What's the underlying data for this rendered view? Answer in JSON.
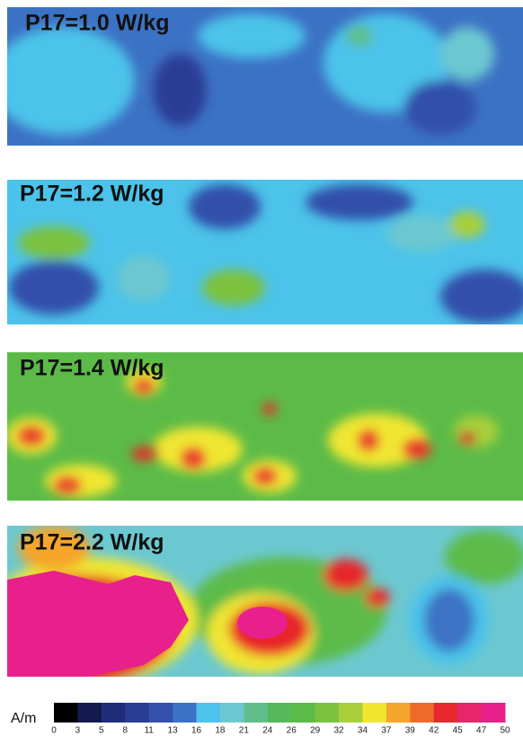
{
  "panels": [
    {
      "label": "P17=1.0 W/kg"
    },
    {
      "label": "P17=1.2 W/kg"
    },
    {
      "label": "P17=1.4 W/kg"
    },
    {
      "label": "P17=2.2 W/kg"
    }
  ],
  "colorbar": {
    "unit": "A/m",
    "ticks": [
      0,
      3,
      5,
      8,
      11,
      13,
      16,
      18,
      21,
      24,
      26,
      29,
      32,
      34,
      37,
      39,
      42,
      45,
      47,
      50
    ],
    "colors": [
      "#000000",
      "#141a50",
      "#1f2d7a",
      "#2a3d95",
      "#3350aa",
      "#3c72c4",
      "#4cc3ea",
      "#6cc8d0",
      "#5fbe8a",
      "#55b85a",
      "#5cbb48",
      "#7cc23e",
      "#a8cf3a",
      "#f0e630",
      "#f5a52c",
      "#ef6a2a",
      "#e8282c",
      "#e8246a",
      "#e8208c"
    ]
  }
}
